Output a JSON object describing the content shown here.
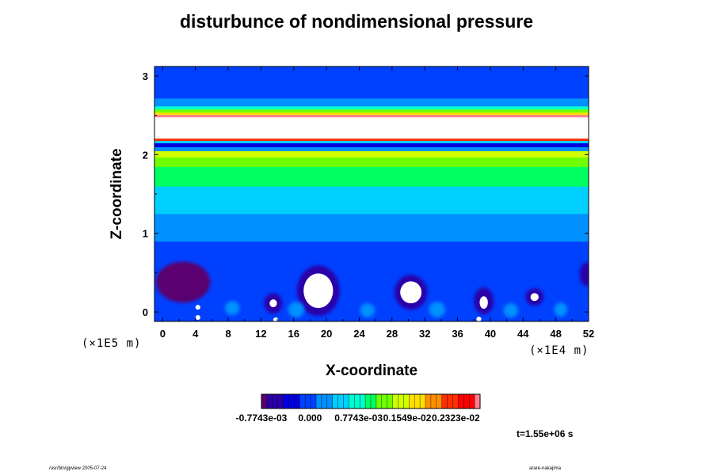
{
  "chart_data": {
    "type": "heatmap",
    "title": "disturbunce of nondimensional pressure",
    "xlabel": "X-coordinate",
    "ylabel": "Z-coordinate",
    "x_unit": "(×1E4 m)",
    "y_unit": "(×1E5 m)",
    "xlim": [
      -1,
      52
    ],
    "ylim": [
      -0.12,
      3.12
    ],
    "x_ticks": [
      "0",
      "4",
      "8",
      "12",
      "16",
      "20",
      "24",
      "28",
      "32",
      "36",
      "40",
      "44",
      "48",
      "52"
    ],
    "y_ticks": [
      "0",
      "1",
      "2",
      "3"
    ],
    "colorbar": {
      "labels": [
        "-0.7743e-03",
        "0.000",
        "0.7743e-03",
        "0.1549e-02",
        "0.2323e-02"
      ],
      "min": -0.0007743,
      "max": 0.00271,
      "colors": [
        "#5a0070",
        "#2a00a8",
        "#0000e0",
        "#0040ff",
        "#0090ff",
        "#00d0ff",
        "#00ffd0",
        "#00ff60",
        "#70ff00",
        "#d0ff00",
        "#ffe000",
        "#ff9000",
        "#ff3000",
        "#ff0000",
        "#ff8090"
      ]
    },
    "layers": [
      {
        "z0": -0.12,
        "z1": 0.9,
        "value": -4e-05
      },
      {
        "z0": 0.9,
        "z1": 1.25,
        "value": 0.00018
      },
      {
        "z0": 1.25,
        "z1": 1.6,
        "value": 0.00045
      },
      {
        "z0": 1.6,
        "z1": 1.85,
        "value": 0.0009
      },
      {
        "z0": 1.85,
        "z1": 1.97,
        "value": 0.0013
      },
      {
        "z0": 1.97,
        "z1": 2.05,
        "value": 0.00155
      },
      {
        "z0": 2.05,
        "z1": 2.1,
        "value": 0.00025
      },
      {
        "z0": 2.1,
        "z1": 2.15,
        "value": -0.00038
      },
      {
        "z0": 2.15,
        "z1": 2.18,
        "value": 0.00055
      },
      {
        "z0": 2.18,
        "z1": 2.21,
        "value": 0.0022
      },
      {
        "z0": 2.21,
        "z1": 2.48,
        "value": 0.0035
      },
      {
        "z0": 2.48,
        "z1": 2.51,
        "value": 0.0026
      },
      {
        "z0": 2.51,
        "z1": 2.54,
        "value": 0.0018
      },
      {
        "z0": 2.54,
        "z1": 2.58,
        "value": 0.0011
      },
      {
        "z0": 2.58,
        "z1": 2.62,
        "value": 0.0006
      },
      {
        "z0": 2.62,
        "z1": 2.72,
        "value": 0.0002
      },
      {
        "z0": 2.72,
        "z1": 3.12,
        "value": 4e-05
      }
    ],
    "blobs": [
      {
        "x": 2.5,
        "z": 0.38,
        "rx": 3.3,
        "rz": 0.26,
        "value": -0.00065
      },
      {
        "x": 51.8,
        "z": 0.48,
        "rx": 0.9,
        "rz": 0.15,
        "value": -0.0006
      },
      {
        "x": 19.0,
        "z": 0.27,
        "rx": 2.6,
        "rz": 0.32,
        "value": -0.00055
      },
      {
        "x": 30.3,
        "z": 0.25,
        "rx": 2.0,
        "rz": 0.22,
        "value": -0.00055
      },
      {
        "x": 13.5,
        "z": 0.11,
        "rx": 1.1,
        "rz": 0.13,
        "value": -0.0005
      },
      {
        "x": 39.2,
        "z": 0.14,
        "rx": 1.2,
        "rz": 0.17,
        "value": -0.0005
      },
      {
        "x": 45.4,
        "z": 0.19,
        "rx": 1.1,
        "rz": 0.11,
        "value": -0.0005
      },
      {
        "x": 19.0,
        "z": 0.27,
        "rx": 1.8,
        "rz": 0.22,
        "value": 0.0035
      },
      {
        "x": 30.3,
        "z": 0.25,
        "rx": 1.3,
        "rz": 0.14,
        "value": 0.0035
      },
      {
        "x": 13.5,
        "z": 0.11,
        "rx": 0.45,
        "rz": 0.05,
        "value": 0.0035
      },
      {
        "x": 39.2,
        "z": 0.12,
        "rx": 0.5,
        "rz": 0.08,
        "value": 0.0035
      },
      {
        "x": 45.4,
        "z": 0.19,
        "rx": 0.5,
        "rz": 0.05,
        "value": 0.0035
      },
      {
        "x": 4.3,
        "z": 0.06,
        "rx": 0.3,
        "rz": 0.03,
        "value": 0.0035
      },
      {
        "x": 4.3,
        "z": -0.07,
        "rx": 0.3,
        "rz": 0.03,
        "value": 0.0035
      },
      {
        "x": 38.6,
        "z": -0.09,
        "rx": 0.3,
        "rz": 0.03,
        "value": 0.0035
      },
      {
        "x": 13.8,
        "z": -0.1,
        "rx": 0.3,
        "rz": 0.03,
        "value": 0.0035
      },
      {
        "x": 8.5,
        "z": 0.05,
        "rx": 0.9,
        "rz": 0.09,
        "value": 0.00018
      },
      {
        "x": 16.3,
        "z": 0.03,
        "rx": 1.0,
        "rz": 0.1,
        "value": 0.00018
      },
      {
        "x": 25.0,
        "z": 0.02,
        "rx": 0.9,
        "rz": 0.09,
        "value": 0.00018
      },
      {
        "x": 33.5,
        "z": 0.03,
        "rx": 1.0,
        "rz": 0.1,
        "value": 0.00018
      },
      {
        "x": 42.5,
        "z": 0.02,
        "rx": 0.9,
        "rz": 0.09,
        "value": 0.00018
      },
      {
        "x": 48.6,
        "z": 0.03,
        "rx": 0.8,
        "rz": 0.09,
        "value": 0.00018
      }
    ]
  },
  "time_label": "t=1.55e+06 s",
  "footer_left": "/usr/bin/gpview 2005-07-24",
  "footer_right": "arare-nakajima"
}
